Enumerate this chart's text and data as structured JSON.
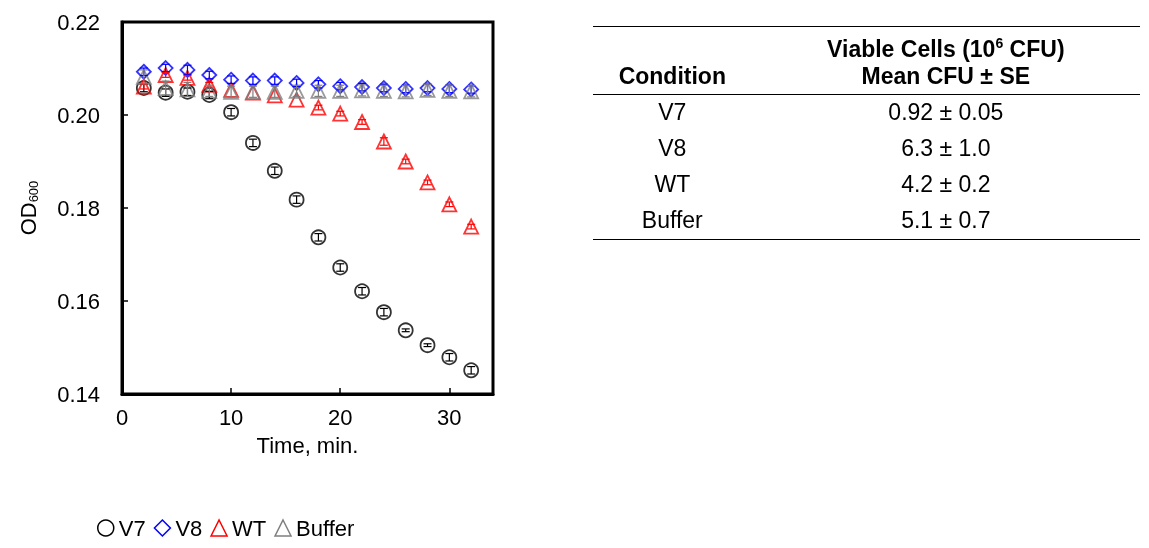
{
  "chart_data": [
    {
      "type": "scatter",
      "xlabel": "Time, min.",
      "ylabel": "OD$_{600}$",
      "x": [
        2,
        4,
        6,
        8,
        10,
        12,
        14,
        16,
        18,
        20,
        22,
        24,
        26,
        28,
        30,
        32
      ],
      "xlim": [
        0,
        34
      ],
      "xticks": [
        0,
        10,
        20,
        30
      ],
      "ylim": [
        0.14,
        0.22
      ],
      "yticks": [
        {
          "value": 0.14,
          "label": "0.14"
        },
        {
          "value": 0.16,
          "label": "0.16"
        },
        {
          "value": 0.18,
          "label": "0.18"
        },
        {
          "value": 0.2,
          "label": "0.20"
        },
        {
          "value": 0.22,
          "label": "0.22"
        }
      ],
      "grid": false,
      "legend": "bottom",
      "series": [
        {
          "name": "V7",
          "color": "#000000",
          "marker": "circle",
          "values": [
            0.2058,
            0.2048,
            0.205,
            0.2043,
            0.2006,
            0.194,
            0.188,
            0.1818,
            0.1737,
            0.1672,
            0.1621,
            0.1576,
            0.1537,
            0.1505,
            0.1479,
            0.1451
          ],
          "errors": [
            0.0008,
            0.0008,
            0.0008,
            0.0008,
            0.0008,
            0.0008,
            0.0008,
            0.0008,
            0.0008,
            0.0008,
            0.0008,
            0.0008,
            0.0003,
            0.0003,
            0.0008,
            0.0008
          ]
        },
        {
          "name": "V8",
          "color": "#0000ff",
          "marker": "diamond",
          "values": [
            0.2093,
            0.2101,
            0.2097,
            0.2086,
            0.2076,
            0.2074,
            0.2074,
            0.2069,
            0.2066,
            0.2062,
            0.206,
            0.2058,
            0.2056,
            0.2058,
            0.2056,
            0.2055
          ],
          "errors": [
            0.0008,
            0.0008,
            0.001,
            0.0008,
            0.0008,
            0.0008,
            0.0008,
            0.0008,
            0.0008,
            0.0008,
            0.0008,
            0.0008,
            0.0008,
            0.0008,
            0.0008,
            0.0008
          ]
        },
        {
          "name": "WT",
          "color": "#ff0000",
          "marker": "triangle",
          "values": [
            0.2061,
            0.2086,
            0.208,
            0.2065,
            0.2054,
            0.2048,
            0.2042,
            0.2033,
            0.2016,
            0.2003,
            0.1985,
            0.1943,
            0.19,
            0.1855,
            0.1808,
            0.176
          ],
          "errors": [
            0.0005,
            0.0005,
            0.0005,
            0.0005,
            null,
            null,
            null,
            null,
            0.0005,
            0.0005,
            0.0005,
            0.0008,
            0.0005,
            0.0005,
            0.0005,
            0.0005
          ]
        },
        {
          "name": "Buffer",
          "color": "#7f7f7f",
          "marker": "triangle",
          "values": [
            0.2082,
            0.2058,
            0.2055,
            0.2052,
            0.205,
            0.205,
            0.205,
            0.2052,
            0.2052,
            0.2052,
            0.2053,
            0.2052,
            0.2051,
            0.2054,
            0.2052,
            0.2051
          ],
          "errors": [
            0.0015,
            0.0015,
            0.0015,
            0.0012,
            0.0012,
            0.0012,
            0.0012,
            0.0012,
            0.0012,
            0.0012,
            0.0012,
            0.0012,
            0.0012,
            0.0012,
            0.0012,
            0.0012
          ]
        }
      ]
    },
    {
      "type": "other",
      "title": "Viable Cells (10$^{6}$ CFU)",
      "annotations": [
        "Condition",
        "Mean CFU ± SE"
      ],
      "categories": [
        "V7",
        "V8",
        "WT",
        "Buffer"
      ],
      "value_labels": [
        "0.92 ± 0.05",
        "6.3 ± 1.0",
        "4.2 ± 0.2",
        "5.1 ± 0.7"
      ]
    }
  ]
}
